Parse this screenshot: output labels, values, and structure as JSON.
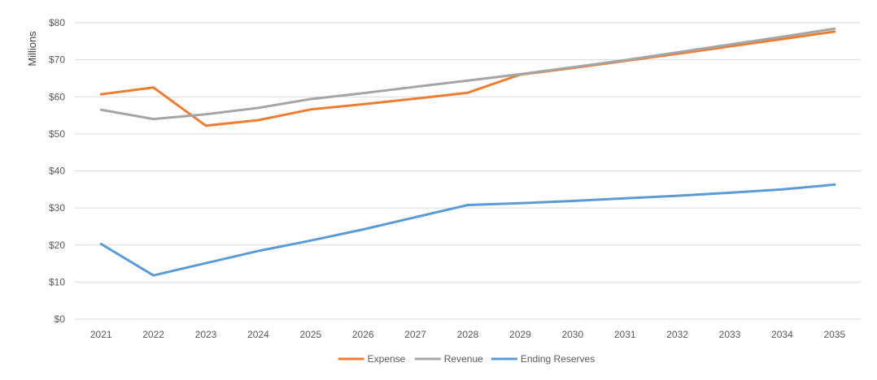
{
  "chart_data": {
    "type": "line",
    "title": "",
    "xlabel": "",
    "ylabel": "Millions",
    "categories": [
      "2021",
      "2022",
      "2023",
      "2024",
      "2025",
      "2026",
      "2027",
      "2028",
      "2029",
      "2030",
      "2031",
      "2032",
      "2033",
      "2034",
      "2035"
    ],
    "ylim": [
      0,
      80
    ],
    "yticks": [
      0,
      10,
      20,
      30,
      40,
      50,
      60,
      70,
      80
    ],
    "ytick_labels": [
      "$0",
      "$10",
      "$20",
      "$30",
      "$40",
      "$50",
      "$60",
      "$70",
      "$80"
    ],
    "grid": true,
    "legend_position": "bottom",
    "series": [
      {
        "name": "Expense",
        "color": "#ED7D31",
        "values": [
          60.7,
          62.5,
          52.2,
          53.7,
          56.6,
          58.0,
          59.5,
          61.1,
          66.0,
          67.8,
          69.7,
          71.6,
          73.6,
          75.6,
          77.6
        ]
      },
      {
        "name": "Revenue",
        "color": "#A5A5A5",
        "values": [
          56.5,
          54.0,
          55.3,
          57.0,
          59.4,
          61.0,
          62.7,
          64.4,
          66.1,
          68.0,
          69.9,
          72.0,
          74.1,
          76.2,
          78.4
        ]
      },
      {
        "name": "Ending Reserves",
        "color": "#5B9BD5",
        "values": [
          20.3,
          11.8,
          15.1,
          18.4,
          21.2,
          24.2,
          27.5,
          30.8,
          31.3,
          31.9,
          32.6,
          33.3,
          34.1,
          35.0,
          36.3
        ]
      }
    ]
  }
}
